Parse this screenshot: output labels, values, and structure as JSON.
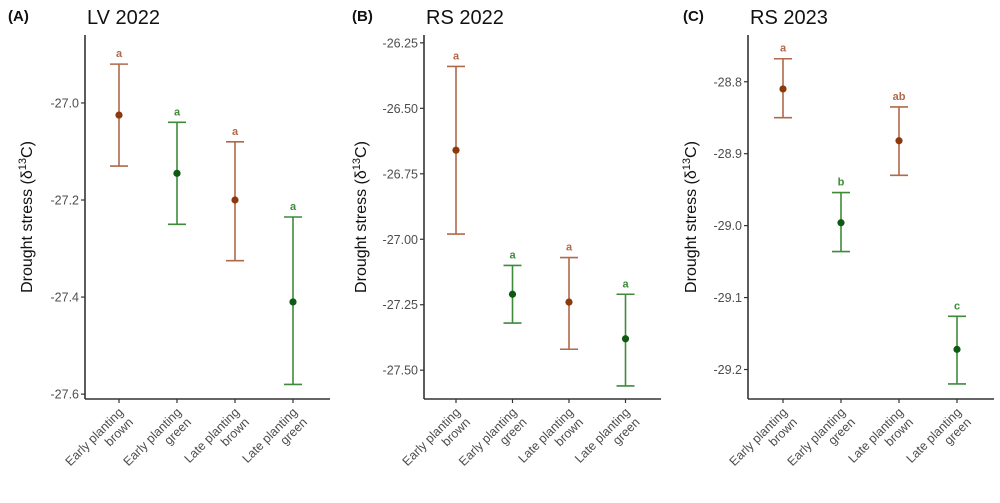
{
  "chart_data": [
    {
      "type": "scatter",
      "panel_label": "(A)",
      "title": "LV 2022",
      "xlabel": "",
      "ylabel": "Drought stress (δ13C)",
      "ylabel_parts": {
        "main": "Drought stress (δ",
        "sup": "13",
        "tail": "C)"
      },
      "categories": [
        "Early planting brown",
        "Early planting green",
        "Late planting brown",
        "Late planting green"
      ],
      "category_lines": [
        [
          "Early planting",
          "brown"
        ],
        [
          "Early planting",
          "green"
        ],
        [
          "Late planting",
          "brown"
        ],
        [
          "Late planting",
          "green"
        ]
      ],
      "colors": [
        "brown",
        "green",
        "brown",
        "green"
      ],
      "means": [
        -27.025,
        -27.145,
        -27.2,
        -27.41
      ],
      "upper": [
        -26.92,
        -27.04,
        -27.08,
        -27.235
      ],
      "lower": [
        -27.13,
        -27.25,
        -27.325,
        -27.58
      ],
      "significance": [
        "a",
        "a",
        "a",
        "a"
      ],
      "yticks": [
        -27.0,
        -27.2,
        -27.4,
        -27.6
      ],
      "ytick_labels": [
        "-27.0",
        "-27.2",
        "-27.4",
        "-27.6"
      ],
      "ylim": [
        -27.61,
        -26.86
      ],
      "grid": false,
      "legend": "none"
    },
    {
      "type": "scatter",
      "panel_label": "(B)",
      "title": "RS 2022",
      "xlabel": "",
      "ylabel": "Drought stress (δ13C)",
      "ylabel_parts": {
        "main": "Drought stress (δ",
        "sup": "13",
        "tail": "C)"
      },
      "categories": [
        "Early planting brown",
        "Early planting green",
        "Late planting brown",
        "Late planting green"
      ],
      "category_lines": [
        [
          "Early planting",
          "brown"
        ],
        [
          "Early planting",
          "green"
        ],
        [
          "Late planting",
          "brown"
        ],
        [
          "Late planting",
          "green"
        ]
      ],
      "colors": [
        "brown",
        "green",
        "brown",
        "green"
      ],
      "means": [
        -26.66,
        -27.21,
        -27.24,
        -27.38
      ],
      "upper": [
        -26.34,
        -27.1,
        -27.07,
        -27.21
      ],
      "lower": [
        -26.98,
        -27.32,
        -27.42,
        -27.56
      ],
      "significance": [
        "a",
        "a",
        "a",
        "a"
      ],
      "yticks": [
        -26.25,
        -26.5,
        -26.75,
        -27.0,
        -27.25,
        -27.5
      ],
      "ytick_labels": [
        "-26.25",
        "-26.50",
        "-26.75",
        "-27.00",
        "-27.25",
        "-27.50"
      ],
      "ylim": [
        -27.61,
        -26.22
      ],
      "grid": false,
      "legend": "none"
    },
    {
      "type": "scatter",
      "panel_label": "(C)",
      "title": "RS 2023",
      "xlabel": "",
      "ylabel": "Drought stress (δ13C)",
      "ylabel_parts": {
        "main": "Drought stress (δ",
        "sup": "13",
        "tail": "C)"
      },
      "categories": [
        "Early planting brown",
        "Early planting green",
        "Late planting brown",
        "Late planting green"
      ],
      "category_lines": [
        [
          "Early planting",
          "brown"
        ],
        [
          "Early planting",
          "green"
        ],
        [
          "Late planting",
          "brown"
        ],
        [
          "Late planting",
          "green"
        ]
      ],
      "colors": [
        "brown",
        "green",
        "brown",
        "green"
      ],
      "means": [
        -28.81,
        -28.996,
        -28.882,
        -29.172
      ],
      "upper": [
        -28.768,
        -28.954,
        -28.835,
        -29.126
      ],
      "lower": [
        -28.85,
        -29.036,
        -28.93,
        -29.22
      ],
      "significance": [
        "a",
        "b",
        "ab",
        "c"
      ],
      "yticks": [
        -28.8,
        -28.9,
        -29.0,
        -29.1,
        -29.2
      ],
      "ytick_labels": [
        "-28.8",
        "-28.9",
        "-29.0",
        "-29.1",
        "-29.2"
      ],
      "ylim": [
        -29.241,
        -28.735
      ],
      "grid": false,
      "legend": "none"
    }
  ],
  "palette": {
    "brown_line": "#b0694a",
    "brown_point": "#8b3a0e",
    "green_line": "#3f8a3a",
    "green_point": "#0e5a12",
    "axis": "#333333"
  }
}
